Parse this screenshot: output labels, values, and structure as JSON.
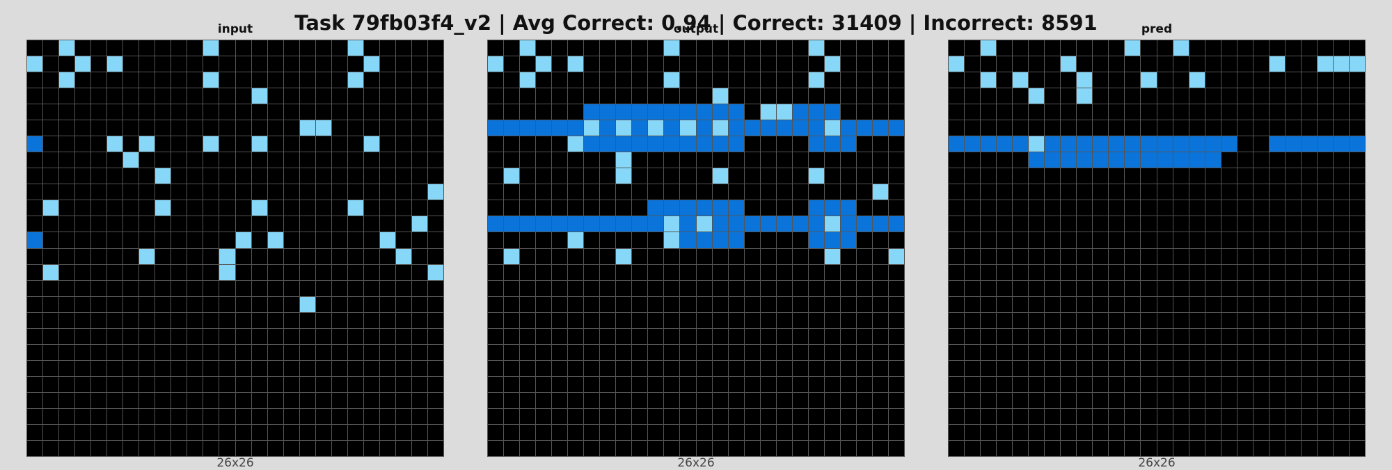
{
  "title": "Task 79fb03f4_v2 | Avg Correct: 0.94 | Correct: 31409 | Incorrect: 8591",
  "palette": {
    "0": "#000000",
    "1": "#87d8f8",
    "2": "#0a74da",
    "3": "#a9a9a9"
  },
  "panels": [
    {
      "label": "input",
      "size_label": "26x26",
      "rows": [
        "00100000000100000000100000",
        "10010100000000000000010000",
        "00100000000100000000100000",
        "00000000000000100000000000",
        "00000000000000000000000000",
        "00000000000000000110000000",
        "20000101000100100000010000",
        "00000010000000000000000000",
        "00000000100000000000000000",
        "00000000000000000000000001",
        "01000000100000100000100000",
        "00000000000000000000000010",
        "20000000000001010000001000",
        "00000001000010000000000100",
        "01000000000010000000000001",
        "00000000000000000000000000",
        "00000000000000000100000000",
        "00000000000000000000000000",
        "00000000000000000000000000",
        "00000000000000000000000000",
        "00000000000000000000000000",
        "00000000000000000000000000",
        "00000000000000000000000000",
        "00000000000000000000000000",
        "00000000000000000000000000",
        "00000000000000000000000000"
      ]
    },
    {
      "label": "output",
      "size_label": "26x26",
      "rows": [
        "00100000000100000000100000",
        "10010100000000000000010000",
        "00100000000100000000100000",
        "00000000000000100000000000",
        "00000022222222220112220000",
        "22222212121212122222212222",
        "00000122222222220000222000",
        "00000000100000000000000000",
        "01000000100000100000100000",
        "00000000000000000000000010",
        "00000000002222220000222000",
        "22222222222121222222212222",
        "00000100000122220000222000",
        "01000000100000000000010001",
        "00000000000000000000000000",
        "00000000000000000000000000",
        "00000000000000000000000000",
        "00000000000000000000000000",
        "00000000000000000000000000",
        "00000000000000000000000000",
        "00000000000000000000000000",
        "00000000000000000000000000",
        "00000000000000000000000000",
        "00000000000000000000000000",
        "00000000000000000000000000",
        "00000000000000000000000000"
      ]
    },
    {
      "label": "pred",
      "size_label": "26x26",
      "rows": [
        "00100000000100100000000000",
        "10000001000000000000100111",
        "00101000100010010000000000",
        "00000100100000000000000000",
        "00000000000000000000000000",
        "00000000000000000000000000",
        "22222122222222222200222222",
        "00000222222222222000000000",
        "00000000000000000000000000",
        "00000000000000000000000000",
        "00000000000000000000000000",
        "00000000000000000000000000",
        "00000000000000000000000000",
        "00000000000000000000000000",
        "00000000000000000000000000",
        "00000000000000000000000000",
        "00000000000000000000000000",
        "00000000000000000000000000",
        "00000000000000000000000000",
        "00000000000000000000000000",
        "00000000000000000000000000",
        "00000000000000000000000000",
        "00000000000000000000000000",
        "00000000000000000000000000",
        "00000000000000000000000000",
        "00000000000000000000000000"
      ]
    }
  ]
}
